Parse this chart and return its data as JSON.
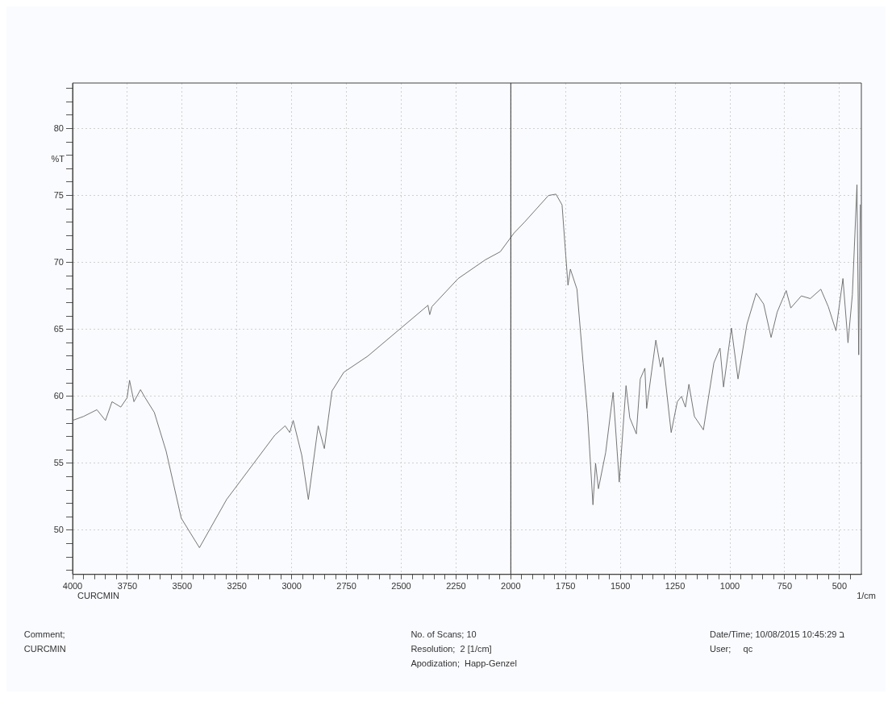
{
  "chart_data": {
    "type": "line",
    "ylabel": "%T",
    "xlabel": "1/cm",
    "annotations": [
      "CURCMIN",
      "Comment;",
      "CURCMIN",
      "No. of Scans; 10",
      "Resolution;  2 [1/cm]",
      "Apodization;  Happ-Genzel",
      "Date/Time; 10/08/2015 10:45:29 ב",
      "User;     qc"
    ],
    "xlim": [
      4000,
      400
    ],
    "ylim": [
      46.7,
      83.4
    ],
    "xticks": [
      4000,
      {
        "value": 3950,
        "label": null
      },
      {
        "value": 3900,
        "label": null
      },
      {
        "value": 3850,
        "label": null
      },
      {
        "value": 3800,
        "label": null
      },
      3750,
      {
        "value": 3700,
        "label": null
      },
      {
        "value": 3650,
        "label": null
      },
      {
        "value": 3600,
        "label": null
      },
      {
        "value": 3550,
        "label": null
      },
      3500,
      {
        "value": 3450,
        "label": null
      },
      {
        "value": 3400,
        "label": null
      },
      {
        "value": 3350,
        "label": null
      },
      {
        "value": 3300,
        "label": null
      },
      3250,
      {
        "value": 3200,
        "label": null
      },
      {
        "value": 3150,
        "label": null
      },
      {
        "value": 3100,
        "label": null
      },
      {
        "value": 3050,
        "label": null
      },
      3000,
      {
        "value": 2950,
        "label": null
      },
      {
        "value": 2900,
        "label": null
      },
      {
        "value": 2850,
        "label": null
      },
      {
        "value": 2800,
        "label": null
      },
      2750,
      {
        "value": 2700,
        "label": null
      },
      {
        "value": 2650,
        "label": null
      },
      {
        "value": 2600,
        "label": null
      },
      {
        "value": 2550,
        "label": null
      },
      2500,
      {
        "value": 2450,
        "label": null
      },
      {
        "value": 2400,
        "label": null
      },
      {
        "value": 2350,
        "label": null
      },
      {
        "value": 2300,
        "label": null
      },
      2250,
      {
        "value": 2200,
        "label": null
      },
      {
        "value": 2150,
        "label": null
      },
      {
        "value": 2100,
        "label": null
      },
      {
        "value": 2050,
        "label": null
      },
      2000,
      {
        "value": 1950,
        "label": null
      },
      {
        "value": 1900,
        "label": null
      },
      {
        "value": 1850,
        "label": null
      },
      {
        "value": 1800,
        "label": null
      },
      1750,
      {
        "value": 1700,
        "label": null
      },
      {
        "value": 1650,
        "label": null
      },
      {
        "value": 1600,
        "label": null
      },
      {
        "value": 1550,
        "label": null
      },
      1500,
      {
        "value": 1450,
        "label": null
      },
      {
        "value": 1400,
        "label": null
      },
      {
        "value": 1350,
        "label": null
      },
      {
        "value": 1300,
        "label": null
      },
      1250,
      {
        "value": 1200,
        "label": null
      },
      {
        "value": 1150,
        "label": null
      },
      {
        "value": 1100,
        "label": null
      },
      {
        "value": 1050,
        "label": null
      },
      1000,
      {
        "value": 950,
        "label": null
      },
      {
        "value": 900,
        "label": null
      },
      {
        "value": 850,
        "label": null
      },
      {
        "value": 800,
        "label": null
      },
      750,
      {
        "value": 700,
        "label": null
      },
      {
        "value": 650,
        "label": null
      },
      {
        "value": 600,
        "label": null
      },
      {
        "value": 550,
        "label": null
      },
      500,
      {
        "value": 450,
        "label": null
      }
    ],
    "yticks": [
      {
        "value": 47,
        "label": null
      },
      {
        "value": 48,
        "label": null
      },
      {
        "value": 49,
        "label": null
      },
      50,
      {
        "value": 51,
        "label": null
      },
      {
        "value": 52,
        "label": null
      },
      {
        "value": 53,
        "label": null
      },
      {
        "value": 54,
        "label": null
      },
      55,
      {
        "value": 56,
        "label": null
      },
      {
        "value": 57,
        "label": null
      },
      {
        "value": 58,
        "label": null
      },
      {
        "value": 59,
        "label": null
      },
      60,
      {
        "value": 61,
        "label": null
      },
      {
        "value": 62,
        "label": null
      },
      {
        "value": 63,
        "label": null
      },
      {
        "value": 64,
        "label": null
      },
      65,
      {
        "value": 66,
        "label": null
      },
      {
        "value": 67,
        "label": null
      },
      {
        "value": 68,
        "label": null
      },
      {
        "value": 69,
        "label": null
      },
      70,
      {
        "value": 71,
        "label": null
      },
      {
        "value": 72,
        "label": null
      },
      {
        "value": 73,
        "label": null
      },
      {
        "value": 74,
        "label": null
      },
      75,
      {
        "value": 76,
        "label": null
      },
      {
        "value": 77,
        "label": null
      },
      {
        "value": 78,
        "label": null
      },
      {
        "value": 79,
        "label": null
      },
      80,
      {
        "value": 81,
        "label": null
      },
      {
        "value": 82,
        "label": null
      },
      {
        "value": 83,
        "label": null
      }
    ],
    "grid": true,
    "marker": "none",
    "line_style": "solid",
    "ref_lines": [
      {
        "axis": "x",
        "value": 2000,
        "color": "#333333"
      }
    ],
    "series": [
      {
        "color": "#666666",
        "x": [
          4000,
          3950,
          3889,
          3850,
          3820,
          3780,
          3751,
          3740,
          3720,
          3690,
          3669,
          3627,
          3573,
          3504,
          3421,
          3297,
          3077,
          3030,
          3009,
          2993,
          2954,
          2924,
          2879,
          2851,
          2816,
          2762,
          2653,
          2501,
          2378,
          2370,
          2360,
          2240,
          2116,
          2048,
          1985,
          1938,
          1828,
          1794,
          1766,
          1749,
          1739,
          1728,
          1698,
          1670,
          1650,
          1625,
          1613,
          1600,
          1567,
          1533,
          1505,
          1474,
          1457,
          1427,
          1409,
          1388,
          1380,
          1338,
          1317,
          1306,
          1268,
          1240,
          1221,
          1203,
          1187,
          1162,
          1121,
          1073,
          1045,
          1029,
          993,
          963,
          922,
          880,
          846,
          812,
          784,
          743,
          722,
          674,
          633,
          585,
          551,
          516,
          484,
          461,
          441,
          420,
          412,
          405
        ],
        "values": [
          58.2,
          58.5,
          59.0,
          58.2,
          59.6,
          59.2,
          59.9,
          61.2,
          59.6,
          60.5,
          59.9,
          58.8,
          55.9,
          50.9,
          48.7,
          52.3,
          57.1,
          57.8,
          57.3,
          58.2,
          55.6,
          52.3,
          57.8,
          56.1,
          60.4,
          61.8,
          63.0,
          65.1,
          66.8,
          66.1,
          66.7,
          68.8,
          70.2,
          70.8,
          72.2,
          73.0,
          75.0,
          75.1,
          74.3,
          70.5,
          68.3,
          69.5,
          68.0,
          62.5,
          58.7,
          51.9,
          55.0,
          53.1,
          55.8,
          60.3,
          53.6,
          60.8,
          58.4,
          57.2,
          61.3,
          62.1,
          59.1,
          64.2,
          62.2,
          62.9,
          57.3,
          59.6,
          60.0,
          59.2,
          60.9,
          58.5,
          57.5,
          62.5,
          63.6,
          60.7,
          65.1,
          61.3,
          65.4,
          67.7,
          66.9,
          64.4,
          66.3,
          67.9,
          66.6,
          67.5,
          67.3,
          68.0,
          66.7,
          64.9,
          68.8,
          64.0,
          67.6,
          75.8,
          63.1,
          74.3
        ]
      }
    ]
  }
}
